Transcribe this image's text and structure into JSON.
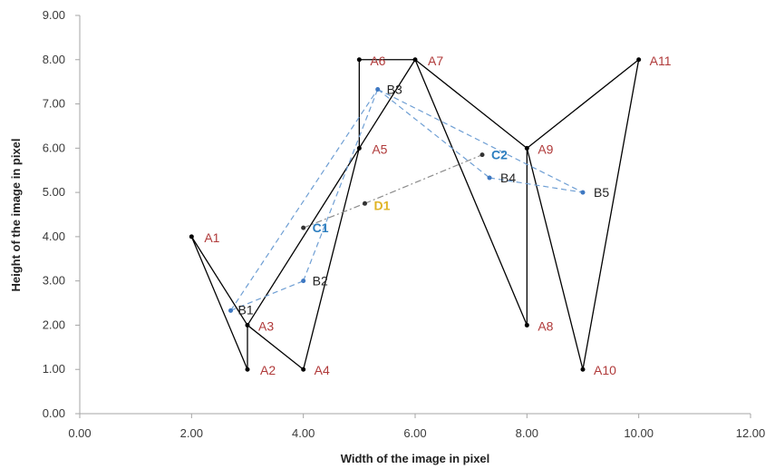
{
  "chart_data": {
    "type": "scatter",
    "title": "",
    "xlabel": "Width of the image in pixel",
    "ylabel": "Height of the image in pixel",
    "xlim": [
      0,
      12
    ],
    "ylim": [
      0,
      9
    ],
    "x_ticks": [
      "0.00",
      "2.00",
      "4.00",
      "6.00",
      "8.00",
      "10.00",
      "12.00"
    ],
    "y_ticks": [
      "0.00",
      "1.00",
      "2.00",
      "3.00",
      "4.00",
      "5.00",
      "6.00",
      "7.00",
      "8.00",
      "9.00"
    ],
    "grid": false,
    "series": [
      {
        "line": "solid",
        "color": "#000000",
        "points": [
          {
            "label": "A1",
            "x": 2.0,
            "y": 4.0
          },
          {
            "label": "A2",
            "x": 3.0,
            "y": 1.0
          },
          {
            "label": "A3",
            "x": 3.0,
            "y": 2.0
          },
          {
            "label": "A4",
            "x": 4.0,
            "y": 1.0
          },
          {
            "label": "A5",
            "x": 5.0,
            "y": 6.0
          },
          {
            "label": "A6",
            "x": 5.0,
            "y": 8.0
          },
          {
            "label": "A7",
            "x": 6.0,
            "y": 8.0
          },
          {
            "label": "A8",
            "x": 8.0,
            "y": 2.0
          },
          {
            "label": "A9",
            "x": 8.0,
            "y": 6.0
          },
          {
            "label": "A10",
            "x": 9.0,
            "y": 1.0
          },
          {
            "label": "A11",
            "x": 10.0,
            "y": 8.0
          }
        ],
        "segments": [
          [
            "A1",
            "A2"
          ],
          [
            "A2",
            "A3"
          ],
          [
            "A3",
            "A4"
          ],
          [
            "A1",
            "A3"
          ],
          [
            "A3",
            "A5"
          ],
          [
            "A4",
            "A5"
          ],
          [
            "A5",
            "A6"
          ],
          [
            "A6",
            "A7"
          ],
          [
            "A5",
            "A7"
          ],
          [
            "A7",
            "A8"
          ],
          [
            "A7",
            "A9"
          ],
          [
            "A8",
            "A9"
          ],
          [
            "A9",
            "A10"
          ],
          [
            "A10",
            "A11"
          ],
          [
            "A9",
            "A11"
          ]
        ]
      },
      {
        "line": "dashed",
        "color": "#6f9fd4",
        "points": [
          {
            "label": "B1",
            "x": 2.7,
            "y": 2.33
          },
          {
            "label": "B2",
            "x": 4.0,
            "y": 3.0
          },
          {
            "label": "B3",
            "x": 5.33,
            "y": 7.33
          },
          {
            "label": "B4",
            "x": 7.33,
            "y": 5.33
          },
          {
            "label": "B5",
            "x": 9.0,
            "y": 5.0
          }
        ],
        "segments": [
          [
            "B1",
            "B2"
          ],
          [
            "B2",
            "B3"
          ],
          [
            "B1",
            "B3"
          ],
          [
            "B3",
            "B4"
          ],
          [
            "B3",
            "B5"
          ],
          [
            "B4",
            "B5"
          ]
        ]
      },
      {
        "line": "dashdot",
        "color": "#8c8c8c",
        "points": [
          {
            "label": "C1",
            "x": 4.0,
            "y": 4.2
          },
          {
            "label": "D1",
            "x": 5.1,
            "y": 4.75
          },
          {
            "label": "C2",
            "x": 7.2,
            "y": 5.85
          }
        ],
        "segments": [
          [
            "C1",
            "D1"
          ],
          [
            "D1",
            "C2"
          ]
        ]
      }
    ],
    "label_colors": {
      "A": "#b03a3a",
      "B": "#222222",
      "C": "#2e7fc0",
      "D": "#e0b425"
    }
  }
}
